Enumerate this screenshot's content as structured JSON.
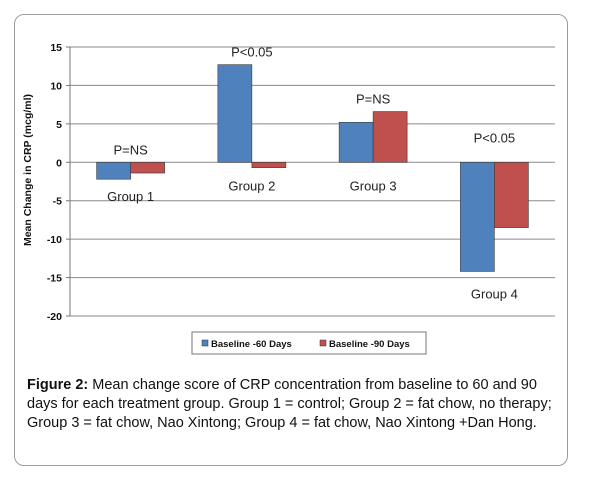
{
  "chart_data": {
    "type": "bar",
    "categories": [
      "Group 1",
      "Group 2",
      "Group 3",
      "Group 4"
    ],
    "series": [
      {
        "name": "Baseline -60 Days",
        "color": "#4f81bd",
        "values": [
          -2.2,
          12.7,
          5.2,
          -14.2
        ]
      },
      {
        "name": "Baseline -90 Days",
        "color": "#c0504d",
        "values": [
          -1.4,
          -0.7,
          6.6,
          -8.5
        ]
      }
    ],
    "annotations": [
      "P=NS",
      "P<0.05",
      "P=NS",
      "P<0.05"
    ],
    "ylabel": "Mean Change in CRP (mcg/ml)",
    "xlabel": "",
    "ylim": [
      -20,
      15
    ],
    "yticks": [
      15,
      10,
      5,
      0,
      -5,
      -10,
      -15,
      -20
    ],
    "grid": true,
    "legend_position": "bottom"
  },
  "caption": {
    "label": "Figure 2:",
    "text": "Mean change score of CRP concentration from baseline to 60 and 90 days for each treatment group.  Group 1 = control; Group 2 = fat chow, no therapy; Group 3 = fat chow, Nao Xintong; Group 4 = fat chow, Nao Xintong +Dan Hong."
  }
}
